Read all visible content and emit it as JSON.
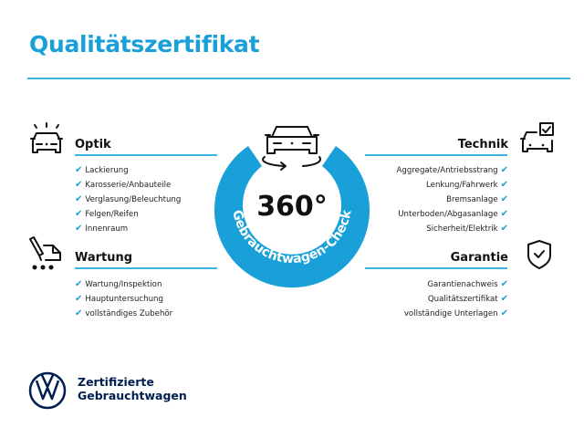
{
  "title": "Qualitätszertifikat",
  "accent": "#1aa0d8",
  "brand_color": "#001e50",
  "center": {
    "big": "360°",
    "ring_text": "Gebrauchtwagen-Check",
    "icon": "car-rotate-icon"
  },
  "sections": {
    "optik": {
      "title": "Optik",
      "icon": "car-lights-icon",
      "items": [
        "Lackierung",
        "Karosserie/Anbauteile",
        "Verglasung/Beleuchtung",
        "Felgen/Reifen",
        "Innenraum"
      ]
    },
    "wartung": {
      "title": "Wartung",
      "icon": "maintenance-icon",
      "items": [
        "Wartung/Inspektion",
        "Hauptuntersuchung",
        "vollständiges Zubehör"
      ]
    },
    "technik": {
      "title": "Technik",
      "icon": "car-check-icon",
      "items": [
        "Aggregate/Antriebsstrang",
        "Lenkung/Fahrwerk",
        "Bremsanlage",
        "Unterboden/Abgasanlage",
        "Sicherheit/Elektrik"
      ]
    },
    "garantie": {
      "title": "Garantie",
      "icon": "shield-check-icon",
      "items": [
        "Garantienachweis",
        "Qualitätszertifikat",
        "vollständige Unterlagen"
      ]
    }
  },
  "check_glyph": "✔",
  "footer": {
    "line1": "Zertifizierte",
    "line2": "Gebrauchtwagen",
    "logo": "vw-logo"
  }
}
